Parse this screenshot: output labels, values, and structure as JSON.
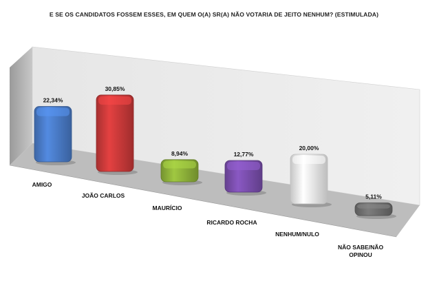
{
  "chart_data": {
    "type": "bar",
    "title": "E SE OS CANDIDATOS FOSSEM ESSES, EM QUEM O(A) SR(A) NÃO VOTARIA DE JEITO NENHUM? (ESTIMULADA)",
    "categories": [
      "AMIGO",
      "JOÃO CARLOS",
      "MAURÍCIO",
      "RICARDO ROCHA",
      "NENHUM/NULO",
      "NÃO SABE/NÃO OPINOU"
    ],
    "category_lines": [
      [
        "AMIGO"
      ],
      [
        "JOÃO CARLOS"
      ],
      [
        "MAURÍCIO"
      ],
      [
        "RICARDO ROCHA"
      ],
      [
        "NENHUM/NULO"
      ],
      [
        "NÃO SABE/NÃO",
        "OPINOU"
      ]
    ],
    "values": [
      22.34,
      30.85,
      8.94,
      12.77,
      20.0,
      5.11
    ],
    "value_labels": [
      "22,34%",
      "30,85%",
      "8,94%",
      "12,77%",
      "20,00%",
      "5,11%"
    ],
    "bar_colors": [
      "#4a7cc9",
      "#cc3a3a",
      "#8fb33a",
      "#7b4fae",
      "#f2f2f2",
      "#707070"
    ],
    "grid": false,
    "legend": "none",
    "style": "3d-perspective"
  }
}
